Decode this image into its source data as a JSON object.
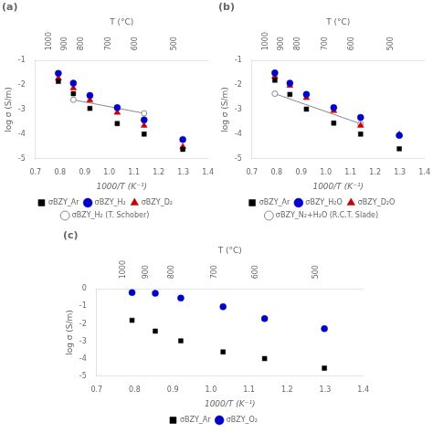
{
  "chart_data": [
    {
      "type": "scatter",
      "title": "(a)",
      "xlabel": "1000/T (K⁻¹)",
      "ylabel": "log σ (S/m)",
      "x2label": "T (°C)",
      "xlim": [
        0.7,
        1.4
      ],
      "xticks": [
        0.7,
        0.8,
        0.9,
        {
          "value": 1.0,
          "label": "1.0"
        },
        1.1,
        1.2,
        1.3,
        1.4
      ],
      "ylim": [
        -5,
        -1
      ],
      "yticks": [
        -5,
        -4,
        -3,
        -2,
        -1
      ],
      "x2lim": [
        0.7,
        1.4
      ],
      "x2ticks": [
        {
          "value": 0.793,
          "label": "1000"
        },
        {
          "value": 0.854,
          "label": "900"
        },
        {
          "value": 0.921,
          "label": "800"
        },
        {
          "value": 1.032,
          "label": "700"
        },
        {
          "value": 1.141,
          "label": "600"
        },
        {
          "value": 1.298,
          "label": "500"
        }
      ],
      "grid": false,
      "legend": "bottom",
      "series": [
        {
          "name": "σBZY_Ar",
          "type": "scatter",
          "color": "#000000",
          "marker": "square",
          "x": [
            0.793,
            0.854,
            0.921,
            1.032,
            1.141,
            1.298
          ],
          "values": [
            -1.85,
            -2.35,
            -2.95,
            -3.57,
            -4.0,
            -4.62
          ]
        },
        {
          "name": "σBZY_H₂",
          "type": "scatter",
          "color": "#0000cc",
          "marker": "circle",
          "x": [
            0.793,
            0.854,
            0.921,
            1.032,
            1.141,
            1.298
          ],
          "values": [
            -1.52,
            -1.92,
            -2.42,
            -2.92,
            -3.42,
            -4.22
          ]
        },
        {
          "name": "σBZY_D₂",
          "type": "scatter",
          "color": "#cc0000",
          "marker": "triangle",
          "x": [
            0.793,
            0.854,
            0.921,
            1.032,
            1.141,
            1.298
          ],
          "values": [
            -1.72,
            -2.12,
            -2.62,
            -3.12,
            -3.65,
            -4.52
          ]
        },
        {
          "name": "σBZY_H₂ (T. Schober)",
          "type": "line",
          "color": "#888888",
          "marker": "circle_open",
          "line_style": "solid",
          "x": [
            0.854,
            1.141
          ],
          "values": [
            -2.6,
            -3.15
          ]
        }
      ]
    },
    {
      "type": "scatter",
      "title": "(b)",
      "xlabel": "1000/T (K⁻¹)",
      "ylabel": "log σ (S/m)",
      "x2label": "T (°C)",
      "xlim": [
        0.7,
        1.4
      ],
      "xticks": [
        0.7,
        0.8,
        0.9,
        {
          "value": 1.0,
          "label": "1.0"
        },
        1.1,
        1.2,
        1.3,
        1.4
      ],
      "ylim": [
        -5,
        -1
      ],
      "yticks": [
        -5,
        -4,
        -3,
        -2,
        -1
      ],
      "x2lim": [
        0.7,
        1.4
      ],
      "x2ticks": [
        {
          "value": 0.793,
          "label": "1000"
        },
        {
          "value": 0.854,
          "label": "900"
        },
        {
          "value": 0.921,
          "label": "800"
        },
        {
          "value": 1.032,
          "label": "700"
        },
        {
          "value": 1.141,
          "label": "600"
        },
        {
          "value": 1.298,
          "label": "500"
        }
      ],
      "grid": false,
      "legend": "bottom",
      "series": [
        {
          "name": "σBZY_Ar",
          "type": "scatter",
          "color": "#000000",
          "marker": "square",
          "x": [
            0.793,
            0.854,
            0.921,
            1.032,
            1.141,
            1.298
          ],
          "values": [
            -1.8,
            -2.38,
            -2.98,
            -3.55,
            -4.0,
            -4.6
          ]
        },
        {
          "name": "σBZY_H₂O",
          "type": "scatter",
          "color": "#0000cc",
          "marker": "circle",
          "x": [
            0.793,
            0.854,
            0.921,
            1.032,
            1.141,
            1.298
          ],
          "values": [
            -1.5,
            -1.92,
            -2.38,
            -2.92,
            -3.32,
            -4.05
          ]
        },
        {
          "name": "σBZY_D₂O",
          "type": "scatter",
          "color": "#cc0000",
          "marker": "triangle",
          "x": [
            0.793,
            0.854,
            0.921,
            1.032,
            1.141,
            1.298
          ],
          "values": [
            -1.65,
            -2.02,
            -2.52,
            -3.05,
            -3.65,
            -4.02
          ]
        },
        {
          "name": "σBZY_N₂+H₂O (R.C.T. Slade)",
          "type": "line",
          "color": "#888888",
          "marker": "circle_open",
          "line_style": "solid",
          "x": [
            0.793,
            1.141
          ],
          "values": [
            -2.35,
            -3.58
          ]
        }
      ]
    },
    {
      "type": "scatter",
      "title": "(c)",
      "xlabel": "1000/T (K⁻¹)",
      "ylabel": "log σ (S/m)",
      "x2label": "T (°C)",
      "xlim": [
        0.7,
        1.4
      ],
      "xticks": [
        0.7,
        0.8,
        0.9,
        {
          "value": 1.0,
          "label": "1.0"
        },
        1.1,
        1.2,
        1.3,
        1.4
      ],
      "ylim": [
        -5,
        0
      ],
      "yticks": [
        -5,
        -4,
        -3,
        -2,
        -1,
        0
      ],
      "x2lim": [
        0.7,
        1.4
      ],
      "x2ticks": [
        {
          "value": 0.793,
          "label": "1000"
        },
        {
          "value": 0.854,
          "label": "900"
        },
        {
          "value": 0.921,
          "label": "800"
        },
        {
          "value": 1.032,
          "label": "700"
        },
        {
          "value": 1.141,
          "label": "600"
        },
        {
          "value": 1.298,
          "label": "500"
        }
      ],
      "grid": false,
      "legend": "bottom",
      "series": [
        {
          "name": "σBZY_Ar",
          "type": "scatter",
          "color": "#000000",
          "marker": "square",
          "x": [
            0.793,
            0.854,
            0.921,
            1.032,
            1.141,
            1.298
          ],
          "values": [
            -1.8,
            -2.42,
            -2.98,
            -3.62,
            -4.0,
            -4.55
          ]
        },
        {
          "name": "σBZY_O₂",
          "type": "scatter",
          "color": "#0000cc",
          "marker": "circle",
          "x": [
            0.793,
            0.854,
            0.921,
            1.032,
            1.141,
            1.298
          ],
          "values": [
            -0.2,
            -0.25,
            -0.52,
            -1.02,
            -1.7,
            -2.28
          ]
        }
      ]
    }
  ]
}
